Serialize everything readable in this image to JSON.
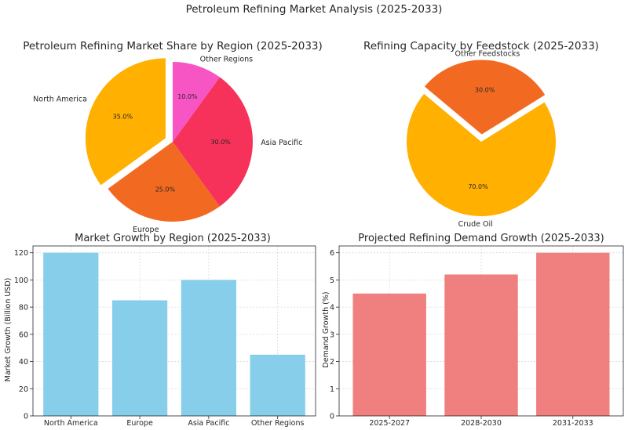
{
  "figure_title": "Petroleum Refining Market Analysis (2025-2033)",
  "chart_data": [
    {
      "type": "pie",
      "title": "Petroleum Refining Market Share by Region (2025-2033)",
      "labels": [
        "North America",
        "Europe",
        "Asia Pacific",
        "Other Regions"
      ],
      "values": [
        35.0,
        25.0,
        30.0,
        10.0
      ],
      "pct_labels": [
        "35.0%",
        "25.0%",
        "30.0%",
        "10.0%"
      ],
      "colors": [
        "#ffb000",
        "#f26a21",
        "#f7325a",
        "#f754c4"
      ],
      "exploded": [
        "North America"
      ]
    },
    {
      "type": "pie",
      "title": "Refining Capacity by Feedstock (2025-2033)",
      "labels": [
        "Crude Oil",
        "Other Feedstocks"
      ],
      "values": [
        70.0,
        30.0
      ],
      "pct_labels": [
        "70.0%",
        "30.0%"
      ],
      "colors": [
        "#ffb000",
        "#f26a21"
      ],
      "exploded": [
        "Other Feedstocks"
      ]
    },
    {
      "type": "bar",
      "title": "Market Growth by Region (2025-2033)",
      "categories": [
        "North America",
        "Europe",
        "Asia Pacific",
        "Other Regions"
      ],
      "values": [
        120,
        85,
        100,
        45
      ],
      "xlabel": "",
      "ylabel": "Market Growth (Billion USD)",
      "ylim": [
        0,
        125
      ],
      "yticks": [
        "0",
        "20",
        "40",
        "60",
        "80",
        "100",
        "120"
      ],
      "color": "#87ceeb",
      "grid": true
    },
    {
      "type": "bar",
      "title": "Projected Refining Demand Growth (2025-2033)",
      "categories": [
        "2025-2027",
        "2028-2030",
        "2031-2033"
      ],
      "values": [
        4.5,
        5.2,
        6.0
      ],
      "xlabel": "",
      "ylabel": "Demand Growth (%)",
      "ylim": [
        0,
        6.25
      ],
      "yticks": [
        "0",
        "1",
        "2",
        "3",
        "4",
        "5",
        "6"
      ],
      "color": "#f08080",
      "grid": true
    }
  ]
}
